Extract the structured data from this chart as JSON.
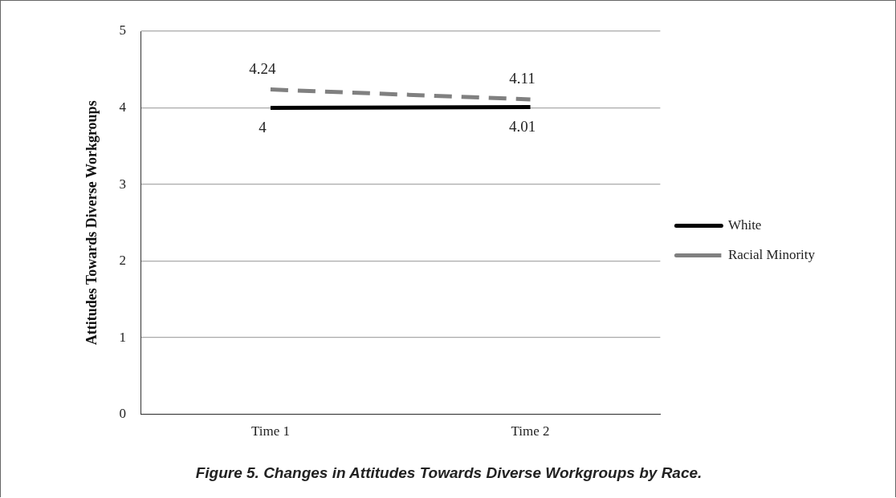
{
  "chart_data": {
    "type": "line",
    "ylabel": "Attitudes Towards Diverse Workgroups",
    "categories": [
      "Time 1",
      "Time 2"
    ],
    "series": [
      {
        "name": "White",
        "color": "#000000",
        "values": [
          4,
          4.01
        ],
        "line_style": "solid"
      },
      {
        "name": "Racial Minority",
        "color": "#808080",
        "values": [
          4.24,
          4.11
        ],
        "line_style": "dashed"
      }
    ],
    "ylim": [
      0,
      5
    ],
    "yticks": [
      0,
      1,
      2,
      3,
      4,
      5
    ],
    "grid": "y",
    "legend": "right",
    "marker": "none",
    "data_labels": true,
    "annotations": [
      "Figure 5. Changes in Attitudes Towards Diverse Workgroups by Race."
    ]
  }
}
